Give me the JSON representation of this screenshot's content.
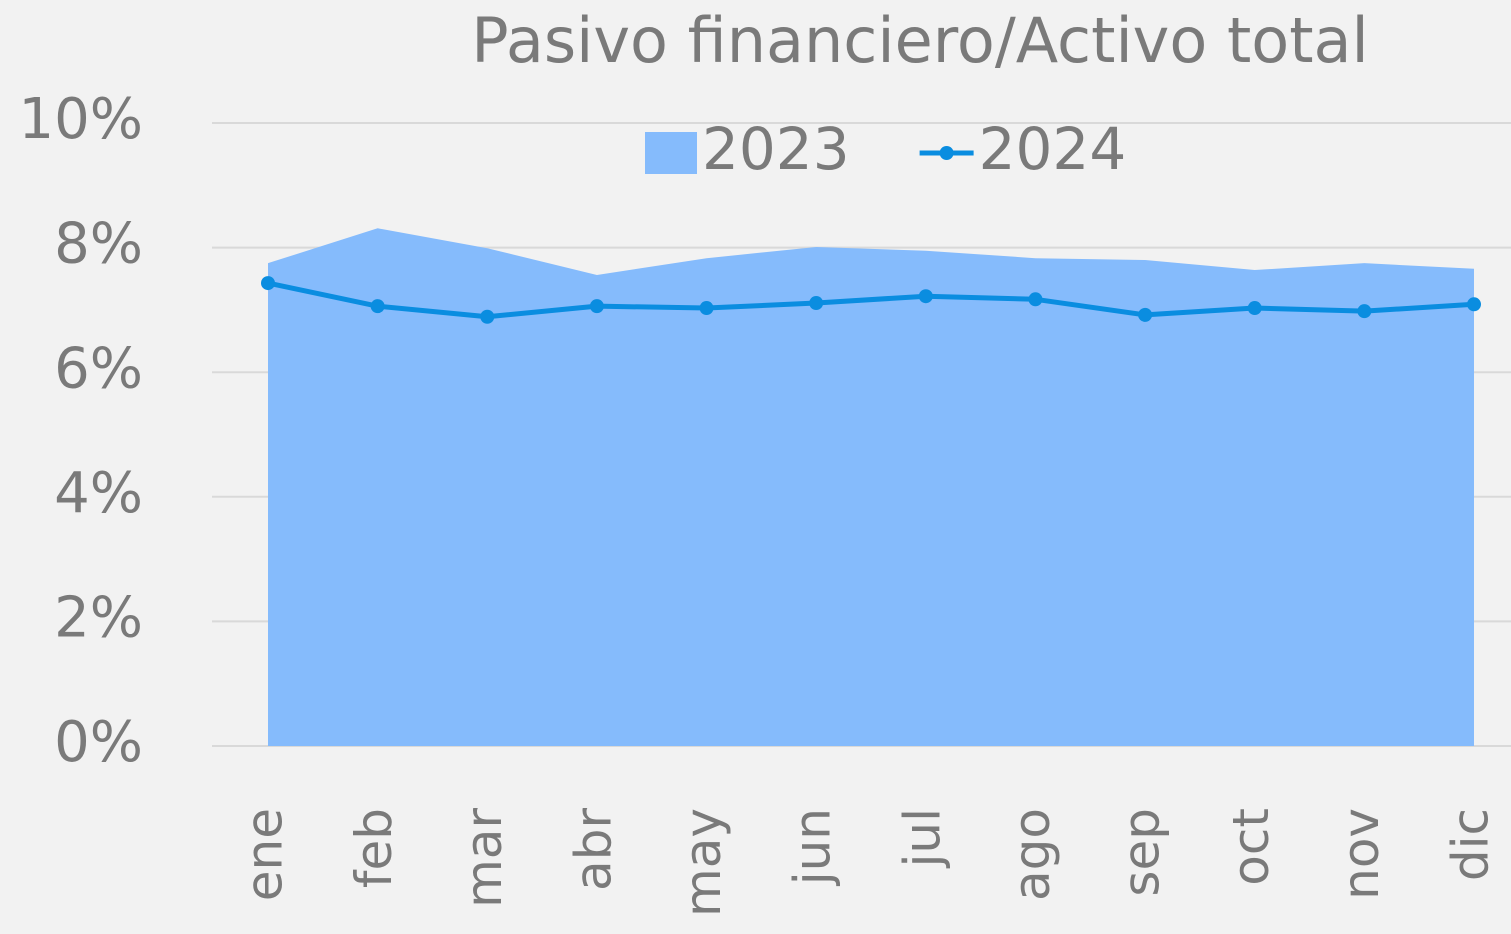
{
  "chart_data": {
    "type": "combo",
    "title": "Pasivo financiero/Activo total",
    "categories": [
      "ene",
      "feb",
      "mar",
      "abr",
      "may",
      "jun",
      "jul",
      "ago",
      "sep",
      "oct",
      "nov",
      "dic"
    ],
    "series": [
      {
        "name": "2023",
        "type": "area",
        "color": "#85bbfc",
        "values": [
          7.75,
          8.31,
          7.99,
          7.56,
          7.83,
          8.01,
          7.95,
          7.83,
          7.8,
          7.64,
          7.75,
          7.66
        ]
      },
      {
        "name": "2024",
        "type": "line",
        "color": "#0a8de0",
        "values": [
          7.43,
          7.06,
          6.89,
          7.06,
          7.03,
          7.11,
          7.22,
          7.17,
          6.92,
          7.03,
          6.98,
          7.09
        ]
      }
    ],
    "ylim": [
      0,
      10
    ],
    "yticks": [
      {
        "value": 0,
        "label": "0%"
      },
      {
        "value": 2,
        "label": "2%"
      },
      {
        "value": 4,
        "label": "4%"
      },
      {
        "value": 6,
        "label": "6%"
      },
      {
        "value": 8,
        "label": "8%"
      },
      {
        "value": 10,
        "label": "10%"
      }
    ],
    "grid": true,
    "legend": "top"
  }
}
